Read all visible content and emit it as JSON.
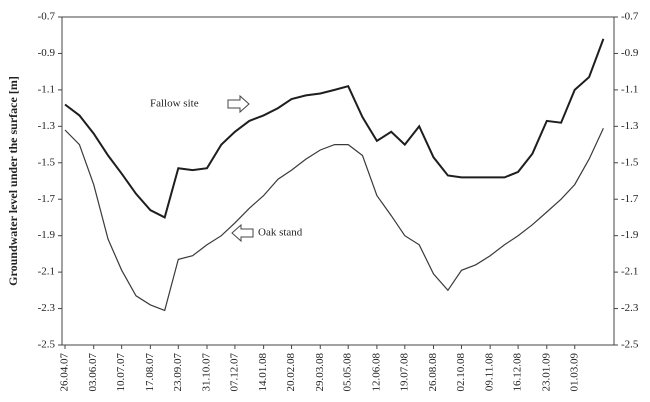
{
  "chart_data": {
    "type": "line",
    "y_label": "Groundwater level under the surface [m]",
    "x": [
      "26.04.07",
      "15.05.07",
      "03.06.07",
      "22.06.07",
      "10.07.07",
      "29.07.07",
      "17.08.07",
      "05.09.07",
      "23.09.07",
      "12.10.07",
      "31.10.07",
      "19.11.07",
      "07.12.07",
      "26.12.07",
      "14.01.08",
      "02.02.08",
      "20.02.08",
      "10.03.08",
      "29.03.08",
      "17.04.08",
      "05.05.08",
      "24.05.08",
      "12.06.08",
      "01.07.08",
      "19.07.08",
      "07.08.08",
      "26.08.08",
      "14.09.08",
      "02.10.08",
      "21.10.08",
      "09.11.08",
      "28.11.08",
      "16.12.08",
      "04.01.09",
      "23.01.09",
      "11.02.09",
      "01.03.09",
      "20.03.09",
      "08.04.09"
    ],
    "series": [
      {
        "name": "Fallow site",
        "color": "#1e1e1e",
        "values": [
          -1.18,
          -1.24,
          -1.34,
          -1.46,
          -1.56,
          -1.67,
          -1.76,
          -1.8,
          -1.53,
          -1.54,
          -1.53,
          -1.4,
          -1.33,
          -1.27,
          -1.24,
          -1.2,
          -1.15,
          -1.13,
          -1.12,
          -1.1,
          -1.08,
          -1.25,
          -1.38,
          -1.33,
          -1.4,
          -1.3,
          -1.47,
          -1.57,
          -1.58,
          -1.58,
          -1.58,
          -1.58,
          -1.55,
          -1.45,
          -1.27,
          -1.28,
          -1.1,
          -1.03,
          -0.82
        ]
      },
      {
        "name": "Oak stand",
        "color": "#3a3a3a",
        "values": [
          -1.32,
          -1.4,
          -1.62,
          -1.92,
          -2.09,
          -2.23,
          -2.28,
          -2.31,
          -2.03,
          -2.01,
          -1.95,
          -1.9,
          -1.83,
          -1.75,
          -1.68,
          -1.59,
          -1.54,
          -1.48,
          -1.43,
          -1.4,
          -1.4,
          -1.46,
          -1.68,
          -1.79,
          -1.9,
          -1.95,
          -2.11,
          -2.2,
          -2.09,
          -2.06,
          -2.01,
          -1.95,
          -1.9,
          -1.84,
          -1.77,
          -1.7,
          -1.62,
          -1.48,
          -1.31
        ]
      }
    ],
    "xlim": [
      "22.04.07",
      "22.04.09"
    ],
    "xticks": [
      "26.04.07",
      "03.06.07",
      "10.07.07",
      "17.08.07",
      "23.09.07",
      "31.10.07",
      "07.12.07",
      "14.01.08",
      "20.02.08",
      "29.03.08",
      "05.05.08",
      "12.06.08",
      "19.07.08",
      "26.08.08",
      "02.10.08",
      "09.11.08",
      "16.12.08",
      "23.01.09",
      "01.03.09"
    ],
    "ylim": [
      -2.5,
      -0.7
    ],
    "yticks": [
      -2.5,
      -2.3,
      -2.1,
      -1.9,
      -1.7,
      -1.5,
      -1.3,
      -1.1,
      -0.9,
      -0.7
    ]
  }
}
